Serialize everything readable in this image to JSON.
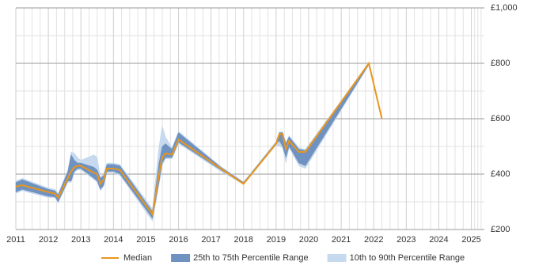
{
  "chart_data": {
    "type": "line",
    "x": [
      2011.0,
      2011.2,
      2012.0,
      2012.2,
      2012.3,
      2012.6,
      2012.7,
      2012.8,
      2012.9,
      2013.0,
      2013.4,
      2013.5,
      2013.6,
      2013.7,
      2013.8,
      2014.0,
      2014.2,
      2015.2,
      2015.4,
      2015.5,
      2015.6,
      2015.8,
      2016.0,
      2017.3,
      2018.0,
      2019.0,
      2019.1,
      2019.2,
      2019.3,
      2019.4,
      2019.7,
      2019.9,
      2021.85,
      2022.25
    ],
    "series": [
      {
        "name": "Median",
        "color": "#e8961e",
        "values": [
          355,
          360,
          335,
          330,
          315,
          385,
          410,
          425,
          430,
          430,
          405,
          400,
          365,
          380,
          420,
          420,
          415,
          255,
          400,
          460,
          475,
          470,
          525,
          420,
          365,
          510,
          545,
          545,
          490,
          520,
          480,
          480,
          800,
          600
        ]
      },
      {
        "name": "25th to 75th Percentile Range",
        "color": "#7092c0",
        "low": [
          335,
          345,
          320,
          318,
          300,
          375,
          375,
          410,
          420,
          420,
          385,
          375,
          345,
          360,
          410,
          410,
          400,
          240,
          370,
          440,
          460,
          460,
          515,
          415,
          365,
          510,
          520,
          500,
          460,
          500,
          440,
          430,
          795,
          null
        ],
        "high": [
          370,
          380,
          345,
          340,
          325,
          410,
          470,
          450,
          440,
          440,
          425,
          415,
          385,
          395,
          435,
          435,
          430,
          265,
          440,
          500,
          510,
          490,
          550,
          425,
          370,
          515,
          550,
          550,
          510,
          535,
          490,
          485,
          800,
          null
        ]
      },
      {
        "name": "10th to 90th Percentile Range",
        "color": "#c6d9ee",
        "low": [
          330,
          340,
          315,
          315,
          295,
          370,
          370,
          405,
          415,
          415,
          380,
          370,
          340,
          355,
          405,
          405,
          395,
          230,
          360,
          430,
          455,
          455,
          510,
          410,
          362,
          505,
          500,
          495,
          440,
          495,
          430,
          420,
          793,
          null
        ],
        "high": [
          375,
          385,
          350,
          345,
          330,
          415,
          480,
          475,
          460,
          450,
          470,
          460,
          390,
          400,
          440,
          440,
          435,
          275,
          500,
          575,
          535,
          495,
          555,
          428,
          372,
          518,
          552,
          552,
          515,
          540,
          495,
          490,
          802,
          null
        ]
      }
    ],
    "xlim": [
      2011,
      2025.4
    ],
    "xticks": [
      2011,
      2012,
      2013,
      2014,
      2015,
      2016,
      2017,
      2018,
      2019,
      2020,
      2021,
      2022,
      2023,
      2024,
      2025
    ],
    "ylim": [
      200,
      1000
    ],
    "yticks": [
      {
        "value": 200,
        "label": "£200"
      },
      {
        "value": 400,
        "label": "£400"
      },
      {
        "value": 600,
        "label": "£600"
      },
      {
        "value": 800,
        "label": "£800"
      },
      {
        "value": 1000,
        "label": "£1,000"
      }
    ],
    "grid": true
  }
}
